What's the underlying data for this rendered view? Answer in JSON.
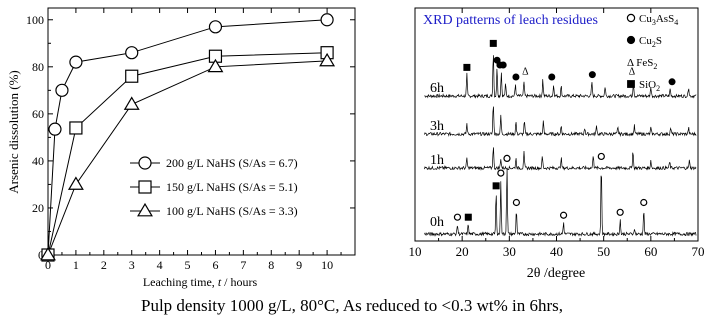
{
  "caption": "Pulp density 1000 g/L, 80°C,   As reduced to <0.3 wt% in 6hrs,",
  "chart_data": [
    {
      "type": "line",
      "title": "",
      "xlabel_prefix": "Leaching time, ",
      "xlabel_var": "t",
      "xlabel_suffix": " / hours",
      "ylabel": "Arsenic dissolution (%)",
      "xlim": [
        0,
        11
      ],
      "ylim": [
        0,
        105
      ],
      "x_ticks": [
        0,
        1,
        2,
        3,
        4,
        5,
        6,
        7,
        8,
        9,
        10
      ],
      "y_ticks": [
        0,
        20,
        40,
        60,
        80,
        100
      ],
      "legend_position": "center-right",
      "series": [
        {
          "name": "200 g/L NaHS (S/As = 6.7)",
          "marker": "circle",
          "x": [
            0,
            0.25,
            0.5,
            1,
            3,
            6,
            10
          ],
          "y": [
            0,
            53.5,
            70,
            82,
            86,
            97,
            100
          ]
        },
        {
          "name": "150 g/L NaHS (S/As = 5.1)",
          "marker": "square",
          "x": [
            0,
            1,
            3,
            6,
            10
          ],
          "y": [
            0,
            54,
            76,
            84.5,
            86
          ]
        },
        {
          "name": "100 g/L NaHS (S/As = 3.3)",
          "marker": "triangle",
          "x": [
            0,
            1,
            3,
            6,
            10
          ],
          "y": [
            0,
            30,
            64,
            80,
            82.5
          ]
        }
      ]
    },
    {
      "type": "line",
      "title": "XRD patterns of leach residues",
      "title_color": "#1c1cc8",
      "xlabel": "2θ /degree",
      "xlim": [
        10,
        70
      ],
      "x_ticks": [
        10,
        20,
        30,
        40,
        50,
        60,
        70
      ],
      "pattern_labels": [
        "6h",
        "3h",
        "1h",
        "0h"
      ],
      "legend": [
        {
          "marker": "open-circle",
          "base": "Cu",
          "sub1": "3",
          "mid": "AsS",
          "sub2": "4"
        },
        {
          "marker": "filled-circle",
          "base": "Cu",
          "sub1": "2",
          "mid": "S",
          "sub2": ""
        },
        {
          "marker": "triangle-text",
          "base": "Δ FeS",
          "sub1": "2",
          "mid": "",
          "sub2": ""
        },
        {
          "marker": "filled-square",
          "base": "SiO",
          "sub1": "2",
          "mid": "",
          "sub2": ""
        }
      ],
      "peaks": {
        "0h": [
          [
            19,
            0.1
          ],
          [
            21.3,
            0.1
          ],
          [
            27.2,
            0.42
          ],
          [
            28.2,
            0.55
          ],
          [
            29.5,
            0.7
          ],
          [
            31.5,
            0.25
          ],
          [
            41.5,
            0.12
          ],
          [
            49.5,
            0.72
          ],
          [
            53.5,
            0.15
          ],
          [
            58.5,
            0.25
          ],
          [
            56.5,
            0.06
          ]
        ],
        "1h": [
          [
            21,
            0.25
          ],
          [
            26.6,
            0.55
          ],
          [
            28.2,
            0.25
          ],
          [
            31.4,
            0.25
          ],
          [
            33.1,
            0.4
          ],
          [
            37,
            0.3
          ],
          [
            41,
            0.25
          ],
          [
            47.8,
            0.35
          ],
          [
            56.2,
            0.45
          ],
          [
            60,
            0.2
          ],
          [
            64,
            0.15
          ],
          [
            68.2,
            0.2
          ]
        ],
        "3h": [
          [
            21,
            0.25
          ],
          [
            26.6,
            0.75
          ],
          [
            28.2,
            0.45
          ],
          [
            31.4,
            0.3
          ],
          [
            33.2,
            0.3
          ],
          [
            37.2,
            0.3
          ],
          [
            41,
            0.2
          ],
          [
            46,
            0.15
          ],
          [
            48.5,
            0.2
          ],
          [
            53,
            0.15
          ],
          [
            56.5,
            0.2
          ],
          [
            60,
            0.15
          ],
          [
            64.2,
            0.15
          ],
          [
            68,
            0.15
          ]
        ],
        "6h": [
          [
            21,
            0.45
          ],
          [
            26.6,
            0.95
          ],
          [
            27.4,
            0.6
          ],
          [
            28.3,
            0.5
          ],
          [
            29.2,
            0.25
          ],
          [
            31.3,
            0.25
          ],
          [
            33.1,
            0.3
          ],
          [
            37.1,
            0.35
          ],
          [
            39.4,
            0.25
          ],
          [
            41,
            0.2
          ],
          [
            47.5,
            0.3
          ],
          [
            50.3,
            0.2
          ],
          [
            56.3,
            0.3
          ],
          [
            60,
            0.2
          ],
          [
            64.1,
            0.15
          ],
          [
            68,
            0.2
          ]
        ]
      },
      "peak_markers": {
        "0h": [
          [
            19,
            "open-circle"
          ],
          [
            21.3,
            "filled-square"
          ],
          [
            27.2,
            "filled-square"
          ],
          [
            28.2,
            "open-circle"
          ],
          [
            29.5,
            "open-circle"
          ],
          [
            31.5,
            "open-circle"
          ],
          [
            41.5,
            "open-circle"
          ],
          [
            49.5,
            "open-circle"
          ],
          [
            53.5,
            "open-circle"
          ],
          [
            58.5,
            "open-circle"
          ]
        ],
        "6h": [
          [
            21,
            "filled-square"
          ],
          [
            26.6,
            "filled-square"
          ],
          [
            27.4,
            "filled-circle"
          ],
          [
            28.0,
            "filled-circle"
          ],
          [
            28.7,
            "filled-circle"
          ],
          [
            31.4,
            "filled-circle"
          ],
          [
            33.4,
            "triangle"
          ],
          [
            39.0,
            "filled-circle"
          ],
          [
            47.6,
            "filled-circle"
          ],
          [
            56.0,
            "triangle"
          ],
          [
            64.5,
            "filled-circle"
          ]
        ]
      }
    }
  ]
}
